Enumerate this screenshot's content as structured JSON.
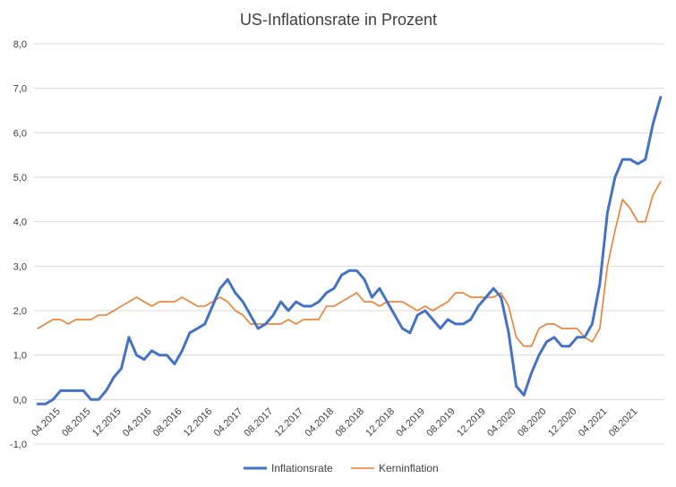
{
  "chart_data": {
    "type": "line",
    "title": "US-Inflationsrate in Prozent",
    "xlabel": "",
    "ylabel": "",
    "ylim": [
      -1.0,
      8.0
    ],
    "yticks": [
      "-1,0",
      "0,0",
      "1,0",
      "2,0",
      "3,0",
      "4,0",
      "5,0",
      "6,0",
      "7,0",
      "8,0"
    ],
    "xtick_labels": [
      "04.2015",
      "08.2015",
      "12.2015",
      "04.2016",
      "08.2016",
      "12.2016",
      "04.2017",
      "08.2017",
      "12.2017",
      "04.2018",
      "08.2018",
      "12.2018",
      "04.2019",
      "08.2019",
      "12.2019",
      "04.2020",
      "08.2020",
      "12.2020",
      "04.2021",
      "08.2021"
    ],
    "xtick_every": 4,
    "months_start": "01.2015",
    "grid": true,
    "legend_position": "bottom",
    "series": [
      {
        "name": "Inflationsrate",
        "color": "#4472C4",
        "values": [
          -0.1,
          -0.1,
          0.0,
          0.2,
          0.2,
          0.2,
          0.2,
          0.0,
          0.0,
          0.2,
          0.5,
          0.7,
          1.4,
          1.0,
          0.9,
          1.1,
          1.0,
          1.0,
          0.8,
          1.1,
          1.5,
          1.6,
          1.7,
          2.1,
          2.5,
          2.7,
          2.4,
          2.2,
          1.9,
          1.6,
          1.7,
          1.9,
          2.2,
          2.0,
          2.2,
          2.1,
          2.1,
          2.2,
          2.4,
          2.5,
          2.8,
          2.9,
          2.9,
          2.7,
          2.3,
          2.5,
          2.2,
          1.9,
          1.6,
          1.5,
          1.9,
          2.0,
          1.8,
          1.6,
          1.8,
          1.7,
          1.7,
          1.8,
          2.1,
          2.3,
          2.5,
          2.3,
          1.5,
          0.3,
          0.1,
          0.6,
          1.0,
          1.3,
          1.4,
          1.2,
          1.2,
          1.4,
          1.4,
          1.7,
          2.6,
          4.2,
          5.0,
          5.4,
          5.4,
          5.3,
          5.4,
          6.2,
          6.8
        ]
      },
      {
        "name": "Kerninflation",
        "color": "#ED7D31",
        "values": [
          1.6,
          1.7,
          1.8,
          1.8,
          1.7,
          1.8,
          1.8,
          1.8,
          1.9,
          1.9,
          2.0,
          2.1,
          2.2,
          2.3,
          2.2,
          2.1,
          2.2,
          2.2,
          2.2,
          2.3,
          2.2,
          2.1,
          2.1,
          2.2,
          2.3,
          2.2,
          2.0,
          1.9,
          1.7,
          1.7,
          1.7,
          1.7,
          1.7,
          1.8,
          1.7,
          1.8,
          1.8,
          1.8,
          2.1,
          2.1,
          2.2,
          2.3,
          2.4,
          2.2,
          2.2,
          2.1,
          2.2,
          2.2,
          2.2,
          2.1,
          2.0,
          2.1,
          2.0,
          2.1,
          2.2,
          2.4,
          2.4,
          2.3,
          2.3,
          2.3,
          2.3,
          2.4,
          2.1,
          1.4,
          1.2,
          1.2,
          1.6,
          1.7,
          1.7,
          1.6,
          1.6,
          1.6,
          1.4,
          1.3,
          1.6,
          3.0,
          3.8,
          4.5,
          4.3,
          4.0,
          4.0,
          4.6,
          4.9
        ]
      }
    ]
  }
}
